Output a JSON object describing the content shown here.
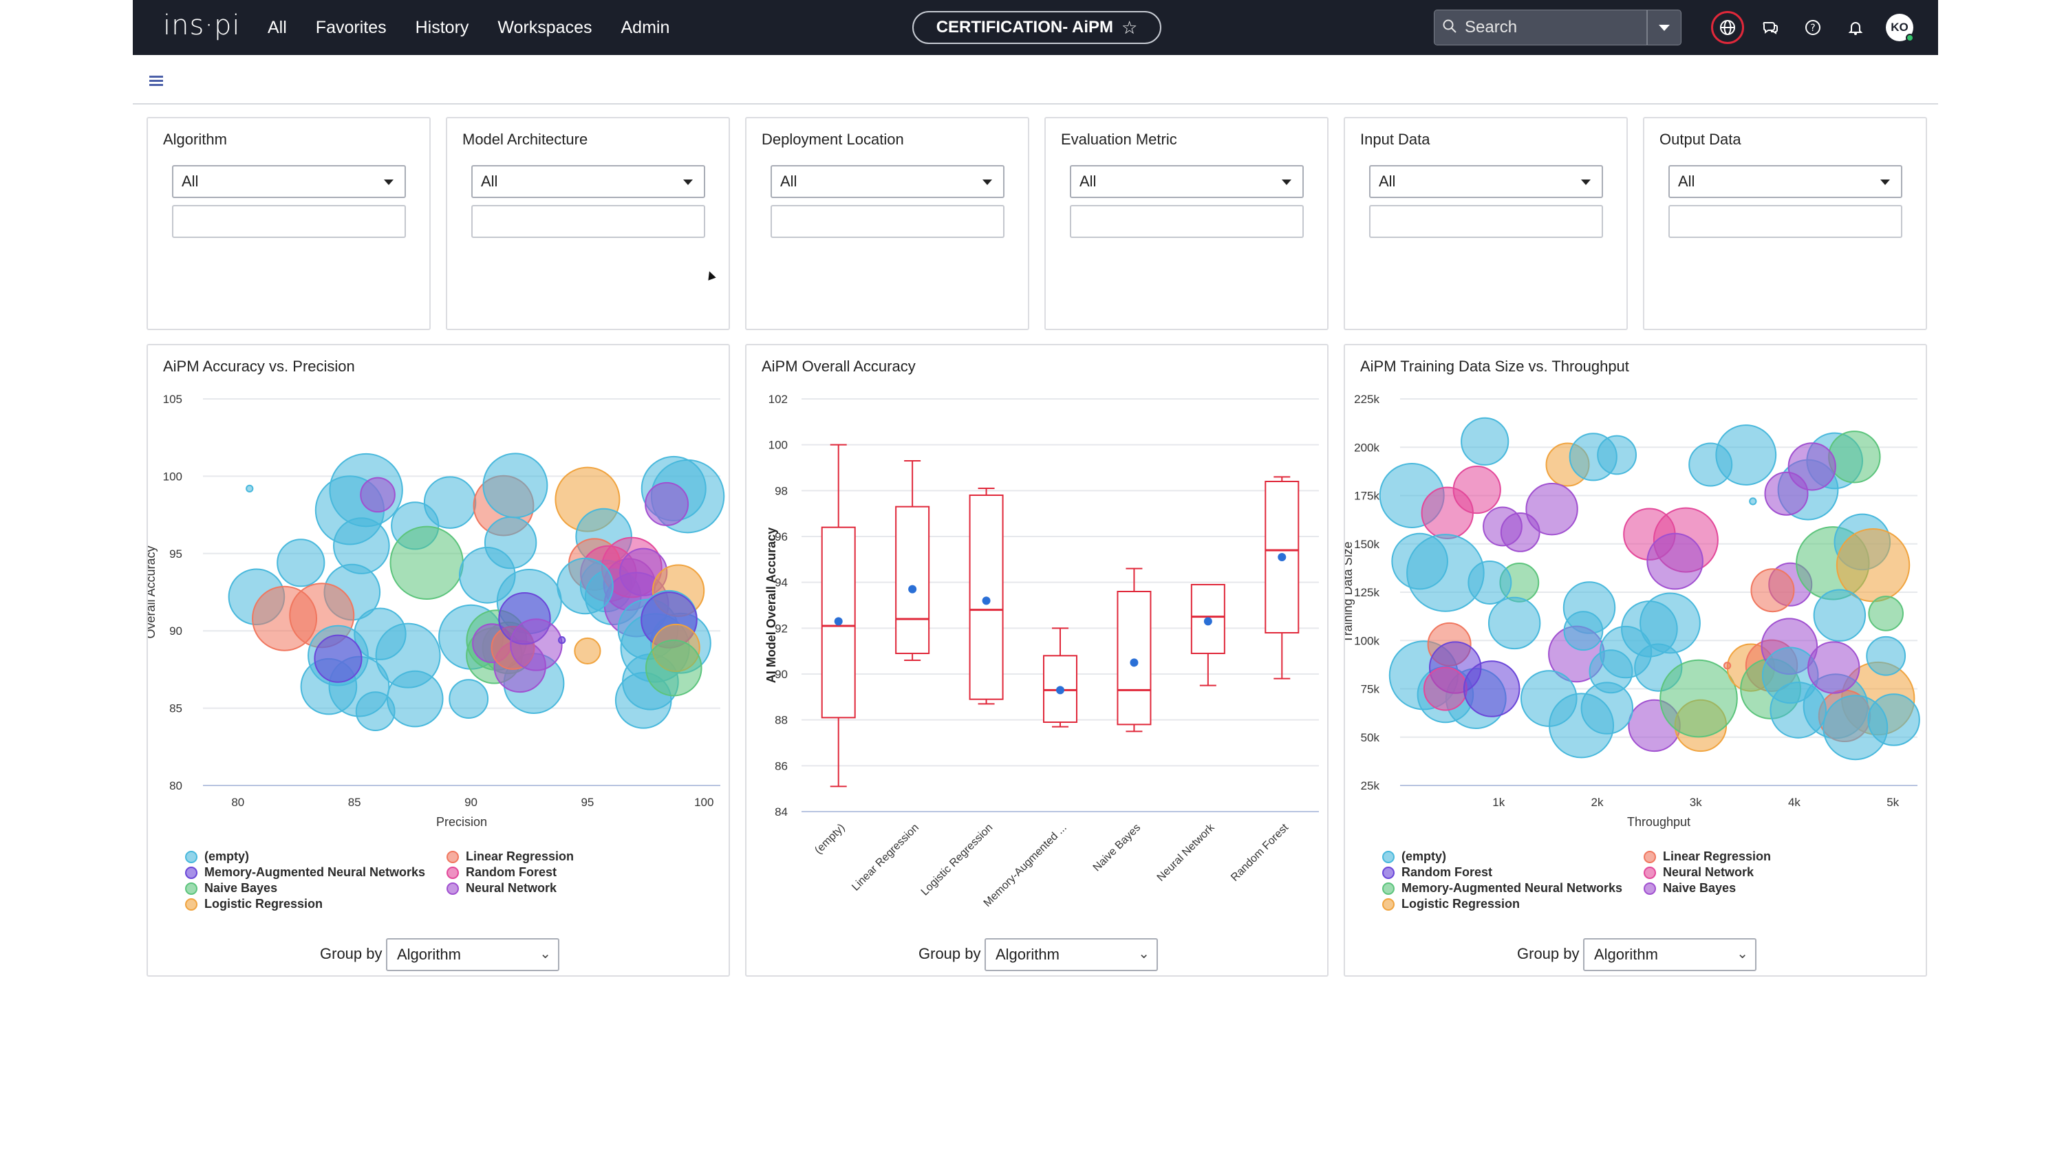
{
  "nav": {
    "brand": "ins·pi",
    "links": [
      "All",
      "Favorites",
      "History",
      "Workspaces",
      "Admin"
    ],
    "dashboard_title": "CERTIFICATION- AiPM",
    "search_placeholder": "Search",
    "avatar_initials": "KO"
  },
  "filters": [
    {
      "label": "Algorithm",
      "value": "All"
    },
    {
      "label": "Model Architecture",
      "value": "All"
    },
    {
      "label": "Deployment Location",
      "value": "All"
    },
    {
      "label": "Evaluation Metric",
      "value": "All"
    },
    {
      "label": "Input Data",
      "value": "All"
    },
    {
      "label": "Output Data",
      "value": "All"
    }
  ],
  "group_by_label": "Group by",
  "group_by_value": "Algorithm",
  "chart_data": [
    {
      "type": "scatter",
      "title": "AiPM Accuracy vs. Precision",
      "xlabel": "Precision",
      "ylabel": "Overall Accuracy",
      "xlim": [
        78.5,
        100.7
      ],
      "ylim": [
        80,
        105
      ],
      "xticks": [
        80,
        85,
        90,
        95,
        100
      ],
      "yticks": [
        80,
        85,
        90,
        95,
        100,
        105
      ],
      "legend": [
        {
          "name": "(empty)",
          "color": "#48b8dc"
        },
        {
          "name": "Linear Regression",
          "color": "#f0775f"
        },
        {
          "name": "Memory-Augmented Neural Networks",
          "color": "#6a46d8"
        },
        {
          "name": "Random Forest",
          "color": "#e3489a"
        },
        {
          "name": "Naive Bayes",
          "color": "#5cc47c"
        },
        {
          "name": "Neural Network",
          "color": "#a050d0"
        },
        {
          "name": "Logistic Regression",
          "color": "#f0a33e"
        }
      ],
      "points": [
        [
          80.5,
          99.2,
          3,
          0
        ],
        [
          80.8,
          92.2,
          26,
          0
        ],
        [
          82.0,
          90.8,
          30,
          1
        ],
        [
          82.7,
          94.4,
          22,
          0
        ],
        [
          84.8,
          97.8,
          32,
          0
        ],
        [
          85.5,
          99.1,
          34,
          0
        ],
        [
          85.3,
          95.5,
          26,
          0
        ],
        [
          84.9,
          92.5,
          26,
          0
        ],
        [
          83.6,
          91.0,
          30,
          1
        ],
        [
          84.3,
          88.4,
          28,
          0
        ],
        [
          83.9,
          86.4,
          26,
          0
        ],
        [
          85.2,
          86.4,
          28,
          0
        ],
        [
          85.9,
          84.8,
          18,
          0
        ],
        [
          86.1,
          89.8,
          24,
          0
        ],
        [
          87.3,
          88.4,
          30,
          0
        ],
        [
          87.6,
          96.8,
          22,
          0
        ],
        [
          88.1,
          94.4,
          34,
          4
        ],
        [
          89.1,
          98.3,
          24,
          0
        ],
        [
          87.6,
          85.6,
          26,
          0
        ],
        [
          89.9,
          85.6,
          18,
          0
        ],
        [
          90.0,
          89.6,
          30,
          0
        ],
        [
          90.7,
          93.6,
          26,
          0
        ],
        [
          91.4,
          98.1,
          28,
          1
        ],
        [
          91.9,
          99.4,
          30,
          0
        ],
        [
          91.7,
          95.7,
          24,
          0
        ],
        [
          92.5,
          91.9,
          30,
          0
        ],
        [
          92.7,
          86.6,
          28,
          0
        ],
        [
          91.6,
          88.9,
          24,
          4
        ],
        [
          91.1,
          89.4,
          28,
          4
        ],
        [
          91.0,
          88.4,
          26,
          4
        ],
        [
          92.1,
          87.7,
          24,
          5
        ],
        [
          90.9,
          89.2,
          18,
          5
        ],
        [
          91.8,
          88.9,
          20,
          1
        ],
        [
          86.0,
          98.8,
          16,
          5
        ],
        [
          84.3,
          88.2,
          22,
          2
        ],
        [
          92.3,
          90.8,
          24,
          2
        ],
        [
          92.8,
          89.1,
          24,
          5
        ],
        [
          95.0,
          98.5,
          30,
          6
        ],
        [
          95.7,
          96.1,
          26,
          0
        ],
        [
          95.3,
          94.3,
          24,
          1
        ],
        [
          95.8,
          92.9,
          24,
          0
        ],
        [
          95.9,
          93.7,
          26,
          3
        ],
        [
          96.1,
          92.2,
          26,
          0
        ],
        [
          96.8,
          93.0,
          24,
          5
        ],
        [
          96.9,
          94.1,
          28,
          3
        ],
        [
          97.1,
          91.7,
          30,
          5
        ],
        [
          97.4,
          93.8,
          22,
          5
        ],
        [
          97.6,
          90.1,
          28,
          0
        ],
        [
          97.7,
          86.7,
          26,
          0
        ],
        [
          97.4,
          85.5,
          26,
          0
        ],
        [
          97.9,
          88.9,
          32,
          0
        ],
        [
          99.0,
          89.2,
          28,
          0
        ],
        [
          98.9,
          92.6,
          24,
          6
        ],
        [
          98.5,
          90.8,
          26,
          0
        ],
        [
          98.5,
          90.7,
          26,
          2
        ],
        [
          98.8,
          88.9,
          22,
          6
        ],
        [
          98.7,
          87.6,
          26,
          4
        ],
        [
          98.7,
          99.2,
          30,
          0
        ],
        [
          99.3,
          98.7,
          34,
          0
        ],
        [
          98.4,
          98.2,
          20,
          5
        ],
        [
          95.0,
          88.7,
          12,
          6
        ],
        [
          93.9,
          89.4,
          3,
          2
        ],
        [
          94.9,
          92.9,
          26,
          0
        ]
      ]
    },
    {
      "type": "box",
      "title": "AiPM Overall Accuracy",
      "ylabel": "AI Model Overall Accuracy",
      "ylim": [
        84,
        102
      ],
      "yticks": [
        84,
        86,
        88,
        90,
        92,
        94,
        96,
        98,
        100,
        102
      ],
      "categories": [
        "(empty)",
        "Linear Regression",
        "Logistic Regression",
        "Memory-Augmented ...",
        "Naive Bayes",
        "Neural Network",
        "Random Forest"
      ],
      "boxes": [
        {
          "min": 85.1,
          "q1": 88.1,
          "median": 92.1,
          "q3": 96.4,
          "max": 100.0,
          "mean": 92.3
        },
        {
          "min": 90.6,
          "q1": 90.9,
          "median": 92.4,
          "q3": 97.3,
          "max": 99.3,
          "mean": 93.7
        },
        {
          "min": 88.7,
          "q1": 88.9,
          "median": 92.8,
          "q3": 97.8,
          "max": 98.1,
          "mean": 93.2
        },
        {
          "min": 87.7,
          "q1": 87.9,
          "median": 89.3,
          "q3": 90.8,
          "max": 92.0,
          "mean": 89.3
        },
        {
          "min": 87.5,
          "q1": 87.8,
          "median": 89.3,
          "q3": 93.6,
          "max": 94.6,
          "mean": 90.5
        },
        {
          "min": 89.5,
          "q1": 90.9,
          "median": 92.5,
          "q3": 93.9,
          "max": 93.9,
          "mean": 92.3
        },
        {
          "min": 89.8,
          "q1": 91.8,
          "median": 95.4,
          "q3": 98.4,
          "max": 98.6,
          "mean": 95.1
        }
      ]
    },
    {
      "type": "scatter",
      "title": "AiPM Training Data Size vs. Throughput",
      "xlabel": "Throughput",
      "ylabel": "Training Data Size",
      "xlim": [
        0,
        5250
      ],
      "ylim": [
        25000,
        225000
      ],
      "xticks": [
        1000,
        2000,
        3000,
        4000,
        5000
      ],
      "xticklabels": [
        "1k",
        "2k",
        "3k",
        "4k",
        "5k"
      ],
      "yticks": [
        25000,
        50000,
        75000,
        100000,
        125000,
        150000,
        175000,
        200000,
        225000
      ],
      "yticklabels": [
        "25k",
        "50k",
        "75k",
        "100k",
        "125k",
        "150k",
        "175k",
        "200k",
        "225k"
      ],
      "legend": [
        {
          "name": "(empty)",
          "color": "#48b8dc"
        },
        {
          "name": "Linear Regression",
          "color": "#f0775f"
        },
        {
          "name": "Random Forest",
          "color": "#6a46d8"
        },
        {
          "name": "Neural Network",
          "color": "#e3489a"
        },
        {
          "name": "Memory-Augmented Neural Networks",
          "color": "#5cc47c"
        },
        {
          "name": "Naive Bayes",
          "color": "#a050d0"
        },
        {
          "name": "Logistic Regression",
          "color": "#f0a33e"
        }
      ],
      "points": [
        [
          120,
          175000,
          30,
          0
        ],
        [
          480,
          166000,
          24,
          3
        ],
        [
          860,
          203000,
          22,
          0
        ],
        [
          1700,
          191000,
          20,
          6
        ],
        [
          1960,
          195000,
          22,
          0
        ],
        [
          2200,
          196000,
          18,
          0
        ],
        [
          1220,
          156000,
          18,
          5
        ],
        [
          1540,
          168000,
          24,
          5
        ],
        [
          1210,
          130000,
          18,
          4
        ],
        [
          460,
          135000,
          36,
          0
        ],
        [
          200,
          141000,
          26,
          0
        ],
        [
          240,
          82000,
          32,
          0
        ],
        [
          460,
          72000,
          26,
          0
        ],
        [
          770,
          70000,
          28,
          0
        ],
        [
          500,
          98000,
          20,
          1
        ],
        [
          560,
          86000,
          24,
          2
        ],
        [
          460,
          75000,
          20,
          3
        ],
        [
          930,
          75000,
          26,
          2
        ],
        [
          1160,
          109000,
          24,
          0
        ],
        [
          910,
          130000,
          20,
          0
        ],
        [
          2530,
          155000,
          24,
          3
        ],
        [
          2900,
          152000,
          30,
          3
        ],
        [
          2790,
          141000,
          26,
          5
        ],
        [
          2530,
          106000,
          26,
          0
        ],
        [
          2740,
          109000,
          28,
          0
        ],
        [
          2620,
          86000,
          22,
          0
        ],
        [
          2580,
          56000,
          24,
          5
        ],
        [
          3050,
          56000,
          24,
          6
        ],
        [
          3030,
          70000,
          36,
          4
        ],
        [
          3560,
          86000,
          22,
          6
        ],
        [
          3770,
          87000,
          24,
          1
        ],
        [
          3760,
          75000,
          28,
          4
        ],
        [
          3950,
          97000,
          26,
          5
        ],
        [
          3960,
          129000,
          20,
          5
        ],
        [
          3780,
          126000,
          20,
          1
        ],
        [
          4390,
          140000,
          34,
          4
        ],
        [
          4140,
          178000,
          28,
          0
        ],
        [
          4410,
          193000,
          26,
          0
        ],
        [
          4610,
          195000,
          24,
          4
        ],
        [
          4690,
          151000,
          26,
          0
        ],
        [
          4800,
          139000,
          34,
          6
        ],
        [
          4460,
          113000,
          24,
          0
        ],
        [
          4850,
          70000,
          34,
          6
        ],
        [
          4420,
          66000,
          30,
          0
        ],
        [
          4510,
          61000,
          24,
          1
        ],
        [
          4040,
          64000,
          26,
          0
        ],
        [
          3960,
          82000,
          26,
          0
        ],
        [
          4400,
          86000,
          24,
          5
        ],
        [
          4620,
          55000,
          30,
          0
        ],
        [
          5010,
          59000,
          24,
          0
        ],
        [
          4930,
          92000,
          18,
          0
        ],
        [
          4930,
          114000,
          16,
          4
        ],
        [
          3150,
          191000,
          20,
          0
        ],
        [
          3510,
          196000,
          28,
          0
        ],
        [
          4180,
          190000,
          22,
          5
        ],
        [
          3920,
          176000,
          20,
          5
        ],
        [
          1920,
          117000,
          24,
          0
        ],
        [
          1790,
          93000,
          26,
          5
        ],
        [
          2140,
          84000,
          20,
          0
        ],
        [
          2290,
          94000,
          24,
          0
        ],
        [
          1510,
          70000,
          26,
          0
        ],
        [
          1840,
          56000,
          30,
          0
        ],
        [
          2100,
          65000,
          24,
          0
        ],
        [
          780,
          178000,
          22,
          3
        ],
        [
          1040,
          159000,
          18,
          5
        ],
        [
          1860,
          105000,
          18,
          0
        ],
        [
          3580,
          172000,
          3,
          0
        ],
        [
          3320,
          87000,
          3,
          1
        ]
      ]
    }
  ]
}
